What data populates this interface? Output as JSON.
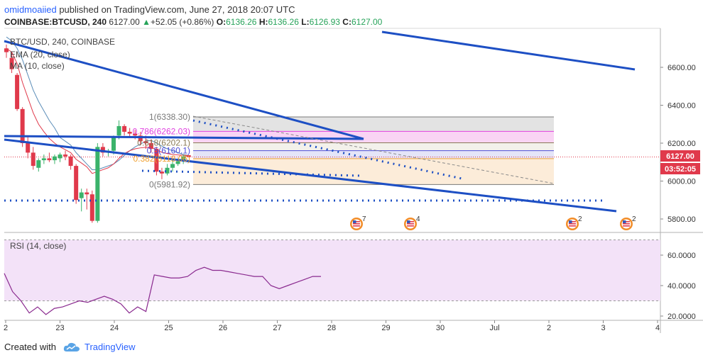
{
  "header": {
    "user": "omidmoaiied",
    "published": "published on TradingView.com, June 27, 2018 20:07 UTC"
  },
  "quote": {
    "symbol": "COINBASE:BTCUSD, 240",
    "last": "6127.00",
    "change": "+52.05 (+0.86%)",
    "o_label": "O:",
    "o": "6136.26",
    "h_label": "H:",
    "h": "6136.26",
    "l_label": "L:",
    "l": "6126.93",
    "c_label": "C:",
    "c": "6127.00"
  },
  "chart_legend": {
    "series": "BTC/USD, 240, COINBASE",
    "ema": "EMA (20, close)",
    "ma": "MA (10, close)"
  },
  "rsi_legend": "RSI (14, close)",
  "price_axis": {
    "ticks": [
      "6600.00",
      "6400.00",
      "6200.00",
      "6000.00",
      "5800.00"
    ],
    "last_price": "6127.00",
    "countdown": "03:52:05"
  },
  "rsi_axis": {
    "ticks": [
      "60.0000",
      "40.0000",
      "20.0000"
    ]
  },
  "time_axis": {
    "ticks": [
      "2",
      "23",
      "24",
      "25",
      "26",
      "27",
      "28",
      "29",
      "30",
      "Jul",
      "2",
      "3",
      "4"
    ]
  },
  "fib_labels": [
    "1(6338.30)",
    "0.786(6262.03)",
    "0.618(6202.1)",
    "0.5(6160.1)",
    "0.382(6118.06)",
    "0(5981.92)"
  ],
  "event_badges": [
    "7",
    "4",
    "2",
    "2"
  ],
  "footer": {
    "created_with": "Created with",
    "brand": "TradingView"
  },
  "colors": {
    "up": "#3bb36b",
    "down": "#e0394b",
    "trend": "#1d4fc4",
    "ema": "#e0394b",
    "ma": "#5b8db8",
    "rsi": "#8a2a8f",
    "rsi_band": "#f3e2f8"
  },
  "chart_data": {
    "type": "candlestick",
    "symbol": "BTC/USD",
    "interval": "240",
    "exchange": "COINBASE",
    "price_range": [
      5720,
      6760
    ],
    "candles": [
      {
        "o": 6700,
        "h": 6720,
        "l": 6650,
        "c": 6680
      },
      {
        "o": 6650,
        "h": 6680,
        "l": 6570,
        "c": 6590
      },
      {
        "o": 6560,
        "h": 6570,
        "l": 6370,
        "c": 6380
      },
      {
        "o": 6380,
        "h": 6390,
        "l": 6180,
        "c": 6200
      },
      {
        "o": 6200,
        "h": 6240,
        "l": 6120,
        "c": 6150
      },
      {
        "o": 6150,
        "h": 6180,
        "l": 6060,
        "c": 6080
      },
      {
        "o": 6070,
        "h": 6120,
        "l": 6050,
        "c": 6110
      },
      {
        "o": 6110,
        "h": 6140,
        "l": 6090,
        "c": 6120
      },
      {
        "o": 6120,
        "h": 6150,
        "l": 6100,
        "c": 6110
      },
      {
        "o": 6110,
        "h": 6140,
        "l": 6090,
        "c": 6130
      },
      {
        "o": 6120,
        "h": 6150,
        "l": 6100,
        "c": 6140
      },
      {
        "o": 6140,
        "h": 6160,
        "l": 6110,
        "c": 6130
      },
      {
        "o": 6130,
        "h": 6140,
        "l": 6060,
        "c": 6080
      },
      {
        "o": 6080,
        "h": 6090,
        "l": 5880,
        "c": 5900
      },
      {
        "o": 5910,
        "h": 5960,
        "l": 5840,
        "c": 5940
      },
      {
        "o": 5940,
        "h": 5960,
        "l": 5850,
        "c": 5930
      },
      {
        "o": 5930,
        "h": 5950,
        "l": 5780,
        "c": 5790
      },
      {
        "o": 5790,
        "h": 6200,
        "l": 5780,
        "c": 6180
      },
      {
        "o": 6180,
        "h": 6200,
        "l": 6130,
        "c": 6150
      },
      {
        "o": 6150,
        "h": 6170,
        "l": 6130,
        "c": 6160
      },
      {
        "o": 6160,
        "h": 6240,
        "l": 6140,
        "c": 6230
      },
      {
        "o": 6240,
        "h": 6320,
        "l": 6220,
        "c": 6290
      },
      {
        "o": 6290,
        "h": 6300,
        "l": 6240,
        "c": 6260
      },
      {
        "o": 6260,
        "h": 6280,
        "l": 6230,
        "c": 6250
      },
      {
        "o": 6250,
        "h": 6270,
        "l": 6220,
        "c": 6240
      },
      {
        "o": 6240,
        "h": 6260,
        "l": 6190,
        "c": 6210
      },
      {
        "o": 6210,
        "h": 6240,
        "l": 6170,
        "c": 6200
      },
      {
        "o": 6200,
        "h": 6220,
        "l": 6150,
        "c": 6170
      },
      {
        "o": 6170,
        "h": 6180,
        "l": 6030,
        "c": 6050
      },
      {
        "o": 6050,
        "h": 6070,
        "l": 6010,
        "c": 6040
      },
      {
        "o": 6040,
        "h": 6090,
        "l": 6030,
        "c": 6070
      },
      {
        "o": 6070,
        "h": 6110,
        "l": 6050,
        "c": 6090
      },
      {
        "o": 6090,
        "h": 6120,
        "l": 6080,
        "c": 6105
      },
      {
        "o": 6105,
        "h": 6140,
        "l": 6090,
        "c": 6130
      },
      {
        "o": 6136.26,
        "h": 6136.26,
        "l": 6126.93,
        "c": 6127.0
      }
    ],
    "ema": [
      6700,
      6680,
      6620,
      6520,
      6440,
      6360,
      6300,
      6260,
      6225,
      6200,
      6180,
      6165,
      6150,
      6115,
      6095,
      6075,
      6040,
      6050,
      6060,
      6070,
      6090,
      6120,
      6145,
      6160,
      6170,
      6175,
      6178,
      6178,
      6165,
      6152,
      6145,
      6140,
      6138,
      6136,
      6135
    ],
    "ma": [
      6760,
      6740,
      6700,
      6640,
      6560,
      6480,
      6420,
      6370,
      6320,
      6280,
      6230,
      6210,
      6190,
      6150,
      6120,
      6090,
      6060,
      6060,
      6070,
      6080,
      6090,
      6110,
      6135,
      6160,
      6180,
      6195,
      6210,
      6215,
      6200,
      6185,
      6170,
      6160,
      6150,
      6140,
      6135
    ],
    "fib_levels": [
      {
        "ratio": 1,
        "price": 6338.3
      },
      {
        "ratio": 0.786,
        "price": 6262.03
      },
      {
        "ratio": 0.618,
        "price": 6202.1
      },
      {
        "ratio": 0.5,
        "price": 6160.1
      },
      {
        "ratio": 0.382,
        "price": 6118.06
      },
      {
        "ratio": 0,
        "price": 5981.92
      }
    ],
    "rsi": {
      "name": "RSI (14, close)",
      "ylim": [
        15,
        72
      ],
      "bands": [
        30,
        70
      ],
      "values": [
        48,
        36,
        30,
        22,
        26,
        21,
        25,
        26,
        28,
        30,
        29,
        31,
        33,
        31,
        28,
        22,
        26,
        23,
        47,
        46,
        45,
        45,
        46,
        50,
        52,
        50,
        50,
        49,
        48,
        47,
        46,
        46,
        40,
        38,
        40,
        42,
        44,
        46,
        46
      ]
    },
    "time_ticks": [
      "2",
      "23",
      "24",
      "25",
      "26",
      "27",
      "28",
      "29",
      "30",
      "Jul",
      "2",
      "3",
      "4"
    ]
  }
}
